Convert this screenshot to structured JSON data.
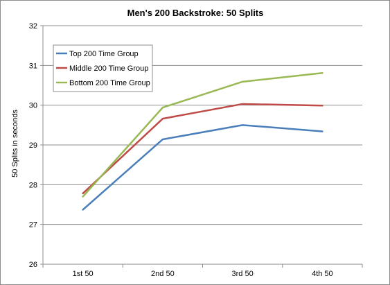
{
  "chart_data": {
    "type": "line",
    "title": "Men's 200 Backstroke: 50 Splits",
    "xlabel": "",
    "ylabel": "50 Splits in seconds",
    "categories": [
      "1st 50",
      "2nd 50",
      "3rd 50",
      "4th 50"
    ],
    "ylim": [
      26,
      32
    ],
    "yticks": [
      26,
      27,
      28,
      29,
      30,
      31,
      32
    ],
    "grid": true,
    "legend_position": "top-left",
    "series": [
      {
        "name": "Top 200 Time Group",
        "color": "#4a7ebb",
        "values": [
          27.37,
          29.14,
          29.5,
          29.34
        ]
      },
      {
        "name": "Middle 200 Time Group",
        "color": "#be4b48",
        "values": [
          27.78,
          29.66,
          30.03,
          29.99
        ]
      },
      {
        "name": "Bottom 200 Time Group",
        "color": "#98b954",
        "values": [
          27.7,
          29.94,
          30.59,
          30.81
        ]
      }
    ]
  }
}
